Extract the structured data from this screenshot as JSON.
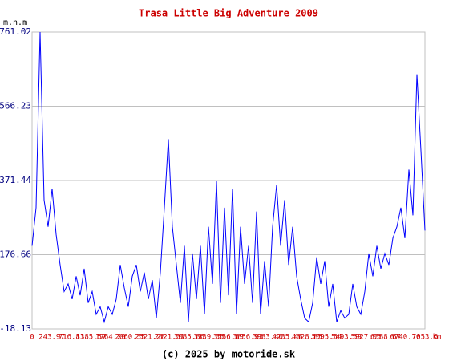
{
  "chart_data": {
    "type": "line",
    "title": "Trasa Little Big Adventure 2009",
    "y_label": "m.n.m",
    "x_unit": "km",
    "footer": "(c) 2025 by motoride.sk",
    "color": "#0000ff",
    "grid": true,
    "ylim": [
      -18.13,
      761.02
    ],
    "yticks": [
      -18.13,
      176.66,
      371.44,
      566.23,
      761.02
    ],
    "x_labels": [
      "0",
      "243.97",
      "716.81",
      "1385.57",
      "1764.20",
      "2060.35",
      "2521.28",
      "2821.31",
      "3085.86",
      "3339.35",
      "3556.89",
      "3856.93",
      "3983.40",
      "4235.46",
      "4628.85",
      "5095.54",
      "5493.59",
      "5927.05",
      "6388.67",
      "6740.76",
      "7053.6"
    ],
    "values": [
      200,
      300,
      761,
      320,
      250,
      350,
      230,
      150,
      80,
      100,
      60,
      120,
      70,
      140,
      50,
      80,
      20,
      40,
      0,
      40,
      20,
      60,
      150,
      90,
      40,
      120,
      150,
      80,
      130,
      60,
      110,
      10,
      130,
      300,
      480,
      250,
      150,
      50,
      200,
      0,
      180,
      60,
      200,
      20,
      250,
      100,
      370,
      50,
      300,
      70,
      350,
      20,
      250,
      100,
      200,
      50,
      290,
      20,
      160,
      40,
      250,
      360,
      200,
      320,
      150,
      250,
      120,
      60,
      10,
      0,
      50,
      170,
      100,
      160,
      40,
      100,
      0,
      30,
      10,
      20,
      100,
      40,
      20,
      80,
      180,
      120,
      200,
      140,
      180,
      150,
      220,
      250,
      300,
      220,
      400,
      280,
      650,
      450,
      240
    ]
  }
}
